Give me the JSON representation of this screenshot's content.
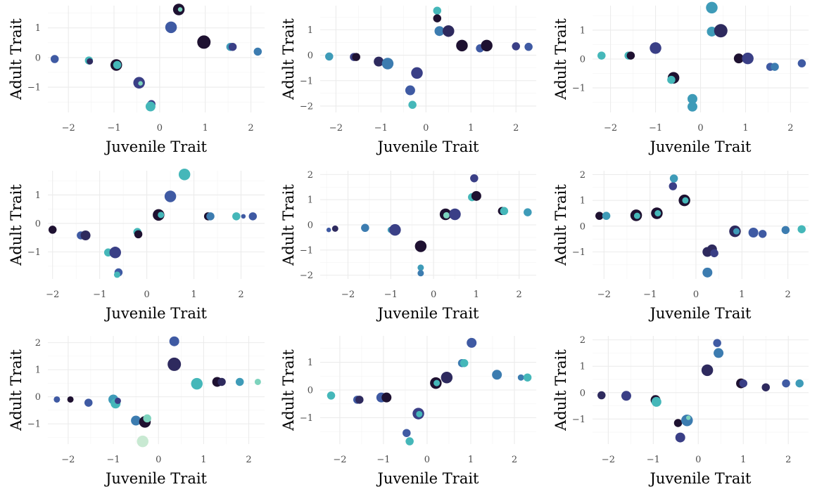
{
  "labels": {
    "xlabel": "Juvenile Trait",
    "ylabel": "Adult Trait"
  },
  "colors": {
    "palette": [
      "#1e1131",
      "#2e2a5e",
      "#3a3f86",
      "#3f5aa3",
      "#3c7cb0",
      "#3e9bb8",
      "#45b7b9",
      "#7dd3bd",
      "#c8e9d2"
    ]
  },
  "chart_data": [
    {
      "type": "scatter",
      "xlabel": "Juvenile Trait",
      "ylabel": "Adult Trait",
      "xlim": [
        -2.45,
        2.3
      ],
      "ylim": [
        -1.85,
        1.75
      ],
      "xticks": [
        -2,
        -1,
        0,
        1,
        2
      ],
      "yticks": [
        -1,
        0,
        1
      ],
      "points": [
        {
          "x": -2.3,
          "y": -0.05,
          "c": 3,
          "s": 3
        },
        {
          "x": -1.55,
          "y": -0.1,
          "c": 6,
          "s": 3
        },
        {
          "x": -1.53,
          "y": -0.13,
          "c": 1,
          "s": 2
        },
        {
          "x": -0.95,
          "y": -0.25,
          "c": 0,
          "s": 5
        },
        {
          "x": -0.93,
          "y": -0.25,
          "c": 6,
          "s": 3
        },
        {
          "x": -0.45,
          "y": -0.85,
          "c": 2,
          "s": 5
        },
        {
          "x": -0.42,
          "y": -0.87,
          "c": 7,
          "s": 1
        },
        {
          "x": -0.18,
          "y": -1.57,
          "c": 2,
          "s": 3
        },
        {
          "x": -0.2,
          "y": -1.65,
          "c": 6,
          "s": 4
        },
        {
          "x": 0.25,
          "y": 1.02,
          "c": 3,
          "s": 5
        },
        {
          "x": 0.42,
          "y": 1.62,
          "c": 0,
          "s": 5
        },
        {
          "x": 0.45,
          "y": 1.62,
          "c": 7,
          "s": 1
        },
        {
          "x": 0.97,
          "y": 0.52,
          "c": 0,
          "s": 6
        },
        {
          "x": 1.55,
          "y": 0.36,
          "c": 5,
          "s": 3
        },
        {
          "x": 1.6,
          "y": 0.36,
          "c": 2,
          "s": 3
        },
        {
          "x": 2.15,
          "y": 0.2,
          "c": 4,
          "s": 3
        }
      ]
    },
    {
      "type": "scatter",
      "xlabel": "Juvenile Trait",
      "ylabel": "Adult Trait",
      "xlim": [
        -2.35,
        2.45
      ],
      "ylim": [
        -2.25,
        1.95
      ],
      "xticks": [
        -2,
        -1,
        0,
        1,
        2
      ],
      "yticks": [
        -2,
        -1,
        0,
        1
      ],
      "points": [
        {
          "x": -2.15,
          "y": -0.05,
          "c": 5,
          "s": 3
        },
        {
          "x": -1.6,
          "y": -0.07,
          "c": 2,
          "s": 3
        },
        {
          "x": -1.55,
          "y": -0.07,
          "c": 0,
          "s": 3
        },
        {
          "x": -1.05,
          "y": -0.25,
          "c": 1,
          "s": 4
        },
        {
          "x": -0.85,
          "y": -0.33,
          "c": 4,
          "s": 5
        },
        {
          "x": -0.35,
          "y": -1.38,
          "c": 3,
          "s": 4
        },
        {
          "x": -0.3,
          "y": -1.95,
          "c": 6,
          "s": 3
        },
        {
          "x": -0.2,
          "y": -0.7,
          "c": 2,
          "s": 5
        },
        {
          "x": 0.25,
          "y": 1.75,
          "c": 6,
          "s": 3
        },
        {
          "x": 0.25,
          "y": 1.45,
          "c": 0,
          "s": 3
        },
        {
          "x": 0.3,
          "y": 0.95,
          "c": 4,
          "s": 4
        },
        {
          "x": 0.5,
          "y": 0.95,
          "c": 1,
          "s": 5
        },
        {
          "x": 0.8,
          "y": 0.38,
          "c": 0,
          "s": 5
        },
        {
          "x": 1.2,
          "y": 0.27,
          "c": 3,
          "s": 3
        },
        {
          "x": 1.35,
          "y": 0.38,
          "c": 0,
          "s": 5
        },
        {
          "x": 2.0,
          "y": 0.35,
          "c": 2,
          "s": 3
        },
        {
          "x": 2.28,
          "y": 0.33,
          "c": 3,
          "s": 3
        }
      ]
    },
    {
      "type": "scatter",
      "xlabel": "Juvenile Trait",
      "ylabel": "Adult Trait",
      "xlim": [
        -2.4,
        2.4
      ],
      "ylim": [
        -1.85,
        1.85
      ],
      "xticks": [
        -2,
        -1,
        0,
        1,
        2
      ],
      "yticks": [
        -1,
        0,
        1
      ],
      "points": [
        {
          "x": -2.2,
          "y": 0.12,
          "c": 6,
          "s": 3
        },
        {
          "x": -1.6,
          "y": 0.12,
          "c": 6,
          "s": 3
        },
        {
          "x": -1.55,
          "y": 0.12,
          "c": 0,
          "s": 3
        },
        {
          "x": -1.0,
          "y": 0.38,
          "c": 2,
          "s": 5
        },
        {
          "x": -0.6,
          "y": -0.65,
          "c": 0,
          "s": 5
        },
        {
          "x": -0.65,
          "y": -0.72,
          "c": 6,
          "s": 3
        },
        {
          "x": -0.18,
          "y": -1.38,
          "c": 5,
          "s": 4
        },
        {
          "x": -0.18,
          "y": -1.65,
          "c": 5,
          "s": 4
        },
        {
          "x": 0.25,
          "y": 1.78,
          "c": 5,
          "s": 5
        },
        {
          "x": 0.25,
          "y": 0.95,
          "c": 5,
          "s": 4
        },
        {
          "x": 0.45,
          "y": 0.98,
          "c": 1,
          "s": 6
        },
        {
          "x": 0.85,
          "y": 0.02,
          "c": 0,
          "s": 4
        },
        {
          "x": 1.05,
          "y": 0.02,
          "c": 2,
          "s": 5
        },
        {
          "x": 1.55,
          "y": -0.27,
          "c": 3,
          "s": 3
        },
        {
          "x": 1.65,
          "y": -0.27,
          "c": 4,
          "s": 3
        },
        {
          "x": 2.25,
          "y": -0.15,
          "c": 3,
          "s": 3
        }
      ]
    },
    {
      "type": "scatter",
      "xlabel": "Juvenile Trait",
      "ylabel": "Adult Trait",
      "xlim": [
        -2.1,
        2.5
      ],
      "ylim": [
        -1.95,
        1.85
      ],
      "xticks": [
        -2,
        -1,
        0,
        1,
        2
      ],
      "yticks": [
        -1,
        0,
        1
      ],
      "points": [
        {
          "x": -2.0,
          "y": -0.22,
          "c": 0,
          "s": 3
        },
        {
          "x": -1.4,
          "y": -0.42,
          "c": 3,
          "s": 3
        },
        {
          "x": -1.3,
          "y": -0.42,
          "c": 1,
          "s": 4
        },
        {
          "x": -0.82,
          "y": -1.02,
          "c": 6,
          "s": 3
        },
        {
          "x": -0.67,
          "y": -1.02,
          "c": 2,
          "s": 5
        },
        {
          "x": -0.6,
          "y": -1.72,
          "c": 3,
          "s": 3
        },
        {
          "x": -0.63,
          "y": -1.8,
          "c": 6,
          "s": 2
        },
        {
          "x": -0.2,
          "y": -0.3,
          "c": 6,
          "s": 3
        },
        {
          "x": -0.18,
          "y": -0.38,
          "c": 0,
          "s": 3
        },
        {
          "x": 0.25,
          "y": 0.3,
          "c": 0,
          "s": 5
        },
        {
          "x": 0.3,
          "y": 0.3,
          "c": 6,
          "s": 2
        },
        {
          "x": 0.5,
          "y": 0.95,
          "c": 3,
          "s": 5
        },
        {
          "x": 0.8,
          "y": 1.72,
          "c": 6,
          "s": 5
        },
        {
          "x": 1.3,
          "y": 0.25,
          "c": 0,
          "s": 3
        },
        {
          "x": 1.35,
          "y": 0.25,
          "c": 4,
          "s": 3
        },
        {
          "x": 1.9,
          "y": 0.25,
          "c": 6,
          "s": 3
        },
        {
          "x": 2.05,
          "y": 0.25,
          "c": 3,
          "s": 1
        },
        {
          "x": 2.25,
          "y": 0.25,
          "c": 3,
          "s": 3
        }
      ]
    },
    {
      "type": "scatter",
      "xlabel": "Juvenile Trait",
      "ylabel": "Adult Trait",
      "xlim": [
        -2.65,
        2.4
      ],
      "ylim": [
        -2.15,
        2.15
      ],
      "xticks": [
        -2,
        -1,
        0,
        1,
        2
      ],
      "yticks": [
        -2,
        -1,
        0,
        1,
        2
      ],
      "points": [
        {
          "x": -2.45,
          "y": -0.2,
          "c": 3,
          "s": 1
        },
        {
          "x": -2.3,
          "y": -0.15,
          "c": 1,
          "s": 2
        },
        {
          "x": -1.6,
          "y": -0.12,
          "c": 4,
          "s": 3
        },
        {
          "x": -1.0,
          "y": -0.2,
          "c": 5,
          "s": 2
        },
        {
          "x": -0.9,
          "y": -0.2,
          "c": 2,
          "s": 5
        },
        {
          "x": -0.35,
          "y": -0.9,
          "c": 3,
          "s": 2
        },
        {
          "x": -0.3,
          "y": -0.85,
          "c": 0,
          "s": 5
        },
        {
          "x": -0.3,
          "y": -1.7,
          "c": 5,
          "s": 2
        },
        {
          "x": -0.3,
          "y": -1.92,
          "c": 4,
          "s": 2
        },
        {
          "x": 0.28,
          "y": 0.42,
          "c": 0,
          "s": 5
        },
        {
          "x": 0.3,
          "y": 0.38,
          "c": 7,
          "s": 2
        },
        {
          "x": 0.5,
          "y": 0.42,
          "c": 2,
          "s": 5
        },
        {
          "x": 0.9,
          "y": 1.1,
          "c": 6,
          "s": 3
        },
        {
          "x": 0.95,
          "y": 1.85,
          "c": 2,
          "s": 3
        },
        {
          "x": 1.0,
          "y": 1.15,
          "c": 0,
          "s": 4
        },
        {
          "x": 1.6,
          "y": 0.55,
          "c": 0,
          "s": 3
        },
        {
          "x": 1.65,
          "y": 0.55,
          "c": 6,
          "s": 3
        },
        {
          "x": 2.2,
          "y": 0.5,
          "c": 5,
          "s": 3
        }
      ]
    },
    {
      "type": "scatter",
      "xlabel": "Juvenile Trait",
      "ylabel": "Adult Trait",
      "xlim": [
        -2.25,
        2.45
      ],
      "ylim": [
        -2.05,
        2.15
      ],
      "xticks": [
        -2,
        -1,
        0,
        1,
        2
      ],
      "yticks": [
        -1,
        0,
        1,
        2
      ],
      "points": [
        {
          "x": -2.1,
          "y": 0.4,
          "c": 0,
          "s": 3
        },
        {
          "x": -1.95,
          "y": 0.4,
          "c": 5,
          "s": 3
        },
        {
          "x": -1.3,
          "y": 0.42,
          "c": 0,
          "s": 5
        },
        {
          "x": -1.28,
          "y": 0.4,
          "c": 6,
          "s": 2
        },
        {
          "x": -0.85,
          "y": 0.5,
          "c": 0,
          "s": 5
        },
        {
          "x": -0.83,
          "y": 0.5,
          "c": 6,
          "s": 2
        },
        {
          "x": -0.5,
          "y": 1.55,
          "c": 2,
          "s": 3
        },
        {
          "x": -0.48,
          "y": 1.85,
          "c": 5,
          "s": 3
        },
        {
          "x": -0.25,
          "y": 1.0,
          "c": 0,
          "s": 5
        },
        {
          "x": -0.23,
          "y": 1.0,
          "c": 6,
          "s": 2
        },
        {
          "x": 0.25,
          "y": -1.0,
          "c": 1,
          "s": 4
        },
        {
          "x": 0.35,
          "y": -0.9,
          "c": 1,
          "s": 4
        },
        {
          "x": 0.4,
          "y": -1.05,
          "c": 2,
          "s": 3
        },
        {
          "x": 0.25,
          "y": -1.8,
          "c": 4,
          "s": 4
        },
        {
          "x": 0.85,
          "y": -0.2,
          "c": 1,
          "s": 5
        },
        {
          "x": 0.88,
          "y": -0.2,
          "c": 5,
          "s": 2
        },
        {
          "x": 1.25,
          "y": -0.25,
          "c": 3,
          "s": 4
        },
        {
          "x": 1.45,
          "y": -0.3,
          "c": 3,
          "s": 3
        },
        {
          "x": 1.95,
          "y": -0.15,
          "c": 4,
          "s": 3
        },
        {
          "x": 2.3,
          "y": -0.12,
          "c": 6,
          "s": 3
        }
      ]
    },
    {
      "type": "scatter",
      "xlabel": "Juvenile Trait",
      "ylabel": "Adult Trait",
      "xlim": [
        -2.45,
        2.35
      ],
      "ylim": [
        -1.75,
        2.25
      ],
      "xticks": [
        -2,
        -1,
        0,
        1,
        2
      ],
      "yticks": [
        -1,
        0,
        1,
        2
      ],
      "points": [
        {
          "x": -2.25,
          "y": -0.1,
          "c": 3,
          "s": 2
        },
        {
          "x": -1.95,
          "y": -0.1,
          "c": 0,
          "s": 2
        },
        {
          "x": -1.55,
          "y": -0.22,
          "c": 3,
          "s": 3
        },
        {
          "x": -1.0,
          "y": -0.1,
          "c": 5,
          "s": 4
        },
        {
          "x": -0.95,
          "y": -0.25,
          "c": 6,
          "s": 4
        },
        {
          "x": -0.9,
          "y": -0.15,
          "c": 2,
          "s": 2
        },
        {
          "x": -0.5,
          "y": -0.88,
          "c": 4,
          "s": 4
        },
        {
          "x": -0.3,
          "y": -0.93,
          "c": 0,
          "s": 5
        },
        {
          "x": -0.25,
          "y": -0.8,
          "c": 7,
          "s": 3
        },
        {
          "x": -0.35,
          "y": -1.65,
          "c": 8,
          "s": 5
        },
        {
          "x": 0.35,
          "y": 2.05,
          "c": 3,
          "s": 4
        },
        {
          "x": 0.35,
          "y": 1.2,
          "c": 1,
          "s": 6
        },
        {
          "x": 0.85,
          "y": 0.48,
          "c": 6,
          "s": 5
        },
        {
          "x": 1.3,
          "y": 0.55,
          "c": 0,
          "s": 4
        },
        {
          "x": 1.4,
          "y": 0.55,
          "c": 1,
          "s": 3
        },
        {
          "x": 1.8,
          "y": 0.55,
          "c": 5,
          "s": 3
        },
        {
          "x": 2.2,
          "y": 0.55,
          "c": 7,
          "s": 2
        }
      ]
    },
    {
      "type": "scatter",
      "xlabel": "Juvenile Trait",
      "ylabel": "Adult Trait",
      "xlim": [
        -2.45,
        2.5
      ],
      "ylim": [
        -1.95,
        1.95
      ],
      "xticks": [
        -2,
        -1,
        0,
        1,
        2
      ],
      "yticks": [
        -1,
        0,
        1
      ],
      "points": [
        {
          "x": -2.2,
          "y": -0.2,
          "c": 6,
          "s": 3
        },
        {
          "x": -1.6,
          "y": -0.35,
          "c": 3,
          "s": 3
        },
        {
          "x": -1.55,
          "y": -0.35,
          "c": 1,
          "s": 3
        },
        {
          "x": -1.05,
          "y": -0.27,
          "c": 3,
          "s": 4
        },
        {
          "x": -0.93,
          "y": -0.27,
          "c": 0,
          "s": 4
        },
        {
          "x": -0.47,
          "y": -1.55,
          "c": 3,
          "s": 3
        },
        {
          "x": -0.4,
          "y": -1.85,
          "c": 6,
          "s": 3
        },
        {
          "x": -0.2,
          "y": -0.85,
          "c": 2,
          "s": 5
        },
        {
          "x": -0.18,
          "y": -0.87,
          "c": 6,
          "s": 2
        },
        {
          "x": 0.2,
          "y": 0.25,
          "c": 0,
          "s": 5
        },
        {
          "x": 0.22,
          "y": 0.25,
          "c": 6,
          "s": 2
        },
        {
          "x": 0.45,
          "y": 0.45,
          "c": 1,
          "s": 5
        },
        {
          "x": 0.8,
          "y": 0.97,
          "c": 4,
          "s": 3
        },
        {
          "x": 0.85,
          "y": 0.97,
          "c": 6,
          "s": 3
        },
        {
          "x": 1.02,
          "y": 1.7,
          "c": 3,
          "s": 4
        },
        {
          "x": 1.6,
          "y": 0.55,
          "c": 4,
          "s": 4
        },
        {
          "x": 2.15,
          "y": 0.45,
          "c": 4,
          "s": 2
        },
        {
          "x": 2.3,
          "y": 0.45,
          "c": 6,
          "s": 3
        }
      ]
    },
    {
      "type": "scatter",
      "xlabel": "Juvenile Trait",
      "ylabel": "Adult Trait",
      "xlim": [
        -2.35,
        2.45
      ],
      "ylim": [
        -1.95,
        2.15
      ],
      "xticks": [
        -2,
        -1,
        0,
        1,
        2
      ],
      "yticks": [
        -1,
        0,
        1,
        2
      ],
      "points": [
        {
          "x": -2.15,
          "y": -0.1,
          "c": 1,
          "s": 3
        },
        {
          "x": -1.6,
          "y": -0.12,
          "c": 2,
          "s": 4
        },
        {
          "x": -0.95,
          "y": -0.28,
          "c": 0,
          "s": 4
        },
        {
          "x": -0.93,
          "y": -0.35,
          "c": 6,
          "s": 4
        },
        {
          "x": -0.45,
          "y": -1.15,
          "c": 0,
          "s": 3
        },
        {
          "x": -0.4,
          "y": -1.7,
          "c": 2,
          "s": 4
        },
        {
          "x": -0.25,
          "y": -1.05,
          "c": 4,
          "s": 5
        },
        {
          "x": -0.22,
          "y": -0.95,
          "c": 7,
          "s": 1
        },
        {
          "x": 0.2,
          "y": 0.85,
          "c": 1,
          "s": 5
        },
        {
          "x": 0.42,
          "y": 1.88,
          "c": 3,
          "s": 3
        },
        {
          "x": 0.45,
          "y": 1.5,
          "c": 4,
          "s": 4
        },
        {
          "x": 0.95,
          "y": 0.35,
          "c": 0,
          "s": 4
        },
        {
          "x": 1.0,
          "y": 0.35,
          "c": 2,
          "s": 3
        },
        {
          "x": 1.5,
          "y": 0.2,
          "c": 1,
          "s": 3
        },
        {
          "x": 1.95,
          "y": 0.35,
          "c": 3,
          "s": 3
        },
        {
          "x": 2.25,
          "y": 0.35,
          "c": 5,
          "s": 3
        }
      ]
    }
  ]
}
